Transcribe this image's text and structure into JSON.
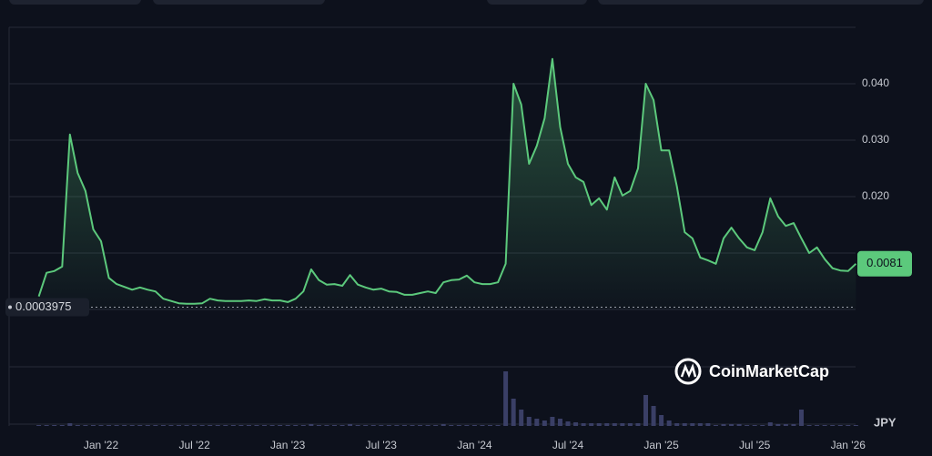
{
  "chart_data": {
    "type": "line",
    "color": "#5cc97c",
    "categories": [
      null,
      null,
      null,
      null,
      null,
      null,
      null,
      null,
      "Jan '22",
      null,
      null,
      null,
      null,
      null,
      null,
      null,
      null,
      null,
      null,
      null,
      "Jul '22",
      null,
      null,
      null,
      null,
      null,
      null,
      null,
      null,
      null,
      null,
      null,
      "Jan '23",
      null,
      null,
      null,
      null,
      null,
      null,
      null,
      null,
      null,
      null,
      null,
      "Jul '23",
      null,
      null,
      null,
      null,
      null,
      null,
      null,
      null,
      null,
      null,
      null,
      "Jan '24",
      null,
      null,
      null,
      null,
      null,
      null,
      null,
      null,
      null,
      null,
      null,
      "Jul '24",
      null,
      null,
      null,
      null,
      null,
      null,
      null,
      null,
      null,
      null,
      null,
      "Jan '25",
      null,
      null,
      null,
      null,
      null,
      null,
      null,
      null,
      null,
      null,
      null,
      "Jul '25",
      null,
      null,
      null,
      null,
      null,
      null,
      null,
      null,
      null,
      null,
      null,
      "Jan '26",
      null
    ],
    "values": [
      0.0023,
      0.0065,
      0.0068,
      0.0076,
      0.031,
      0.0242,
      0.021,
      0.0142,
      0.0121,
      0.0056,
      0.0045,
      0.004,
      0.0035,
      0.0039,
      0.0035,
      0.0032,
      0.0019,
      0.0015,
      0.0011,
      0.001,
      0.001,
      0.0011,
      0.0019,
      0.0016,
      0.0015,
      0.0015,
      0.0015,
      0.0016,
      0.0015,
      0.0018,
      0.0016,
      0.0016,
      0.0013,
      0.0019,
      0.0032,
      0.0071,
      0.0052,
      0.0044,
      0.0045,
      0.0042,
      0.0061,
      0.0044,
      0.0039,
      0.0035,
      0.0037,
      0.0032,
      0.0031,
      0.0026,
      0.0026,
      0.0029,
      0.0032,
      0.0029,
      0.0048,
      0.0052,
      0.0053,
      0.006,
      0.0048,
      0.0045,
      0.0045,
      0.0048,
      0.0081,
      0.04,
      0.0363,
      0.0258,
      0.029,
      0.0339,
      0.0444,
      0.0323,
      0.0258,
      0.0234,
      0.0226,
      0.0185,
      0.0197,
      0.0177,
      0.0234,
      0.0202,
      0.021,
      0.025,
      0.04,
      0.0371,
      0.0282,
      0.0282,
      0.0218,
      0.0137,
      0.0126,
      0.0092,
      0.0087,
      0.0081,
      0.0126,
      0.0145,
      0.0126,
      0.011,
      0.0105,
      0.0137,
      0.0197,
      0.0165,
      0.0148,
      0.0153,
      0.0126,
      0.01,
      0.011,
      0.0089,
      0.0073,
      0.0069,
      0.0068,
      0.0081
    ],
    "volume": [
      1,
      1,
      1,
      1,
      3,
      1,
      1,
      1,
      1,
      1,
      1,
      1,
      1,
      1,
      1,
      1,
      1,
      1,
      1,
      1,
      1,
      1,
      1,
      1,
      1,
      1,
      1,
      1,
      1,
      1,
      1,
      1,
      1,
      1,
      1,
      2,
      1,
      1,
      1,
      1,
      2,
      1,
      1,
      1,
      1,
      1,
      1,
      1,
      1,
      1,
      1,
      1,
      2,
      1,
      1,
      1,
      1,
      1,
      1,
      1,
      60,
      30,
      18,
      10,
      8,
      6,
      10,
      8,
      5,
      4,
      3,
      3,
      3,
      3,
      3,
      3,
      3,
      3,
      34,
      22,
      12,
      6,
      3,
      3,
      3,
      3,
      3,
      1,
      2,
      2,
      2,
      1,
      1,
      1,
      4,
      2,
      2,
      2,
      18,
      1,
      1,
      1,
      1,
      1,
      1,
      1
    ],
    "volume_color": "#3a3f66",
    "ylim": [
      0,
      0.05
    ],
    "yticks": [
      {
        "value": 0.02,
        "label": "0.020"
      },
      {
        "value": 0.03,
        "label": "0.030"
      },
      {
        "value": 0.04,
        "label": "0.040"
      }
    ],
    "grid": true,
    "reference_line": 0.0003975,
    "current_price": 0.0081,
    "currency": "JPY",
    "watermark": "CoinMarketCap"
  }
}
